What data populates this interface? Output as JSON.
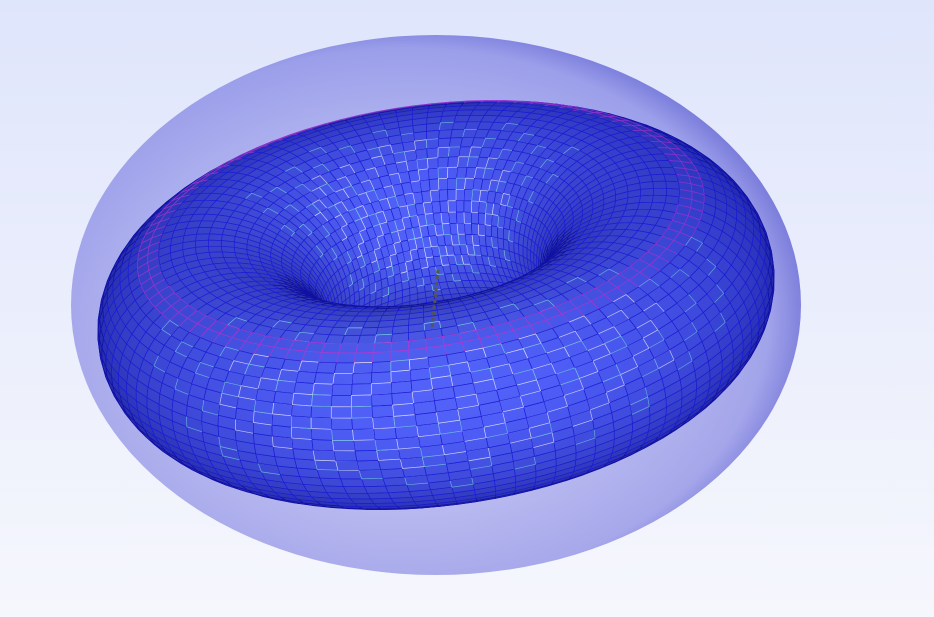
{
  "viewer": {
    "background_top": "#dfe5fb",
    "background_bottom": "#f6f7fd",
    "mesh_colors": {
      "edge_primary": "#1a1ad6",
      "edge_dark": "#0a0a9a",
      "edge_light": "#ffffff",
      "edge_cyan": "#7fe3e3",
      "edge_magenta": "#c23bd1",
      "axis": "#555555"
    },
    "object_shape": "torus"
  }
}
